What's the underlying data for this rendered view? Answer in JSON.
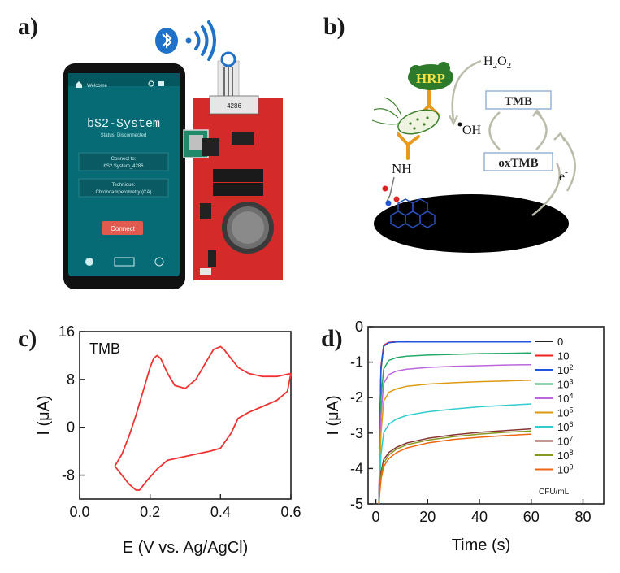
{
  "panels": {
    "a": {
      "letter": "a)",
      "phone": {
        "top_bar": "Welcome",
        "app_title": "bS2-System",
        "status": "Status: Disconnected",
        "connect_label": "Connect to:",
        "connect_value": "bS2 System_4286",
        "technique_label": "Technique:",
        "technique_value": "Chronoamperometry (CA)",
        "connect_button": "Connect"
      },
      "board": {
        "chip_label": "4286"
      }
    },
    "b": {
      "letter": "b)",
      "hrp": "HRP",
      "h2o2": "H",
      "h2o2_sub1": "2",
      "h2o2_mid": "O",
      "h2o2_sub2": "2",
      "oh": "OH",
      "tmb": "TMB",
      "oxtmb": "oxTMB",
      "nh": "NH",
      "electron": "e",
      "electron_sup": "-"
    },
    "c": {
      "letter": "c)",
      "annotation": "TMB",
      "ylabel": "I (μA)",
      "xlabel": "E (V vs. Ag/AgCl)"
    },
    "d": {
      "letter": "d)",
      "ylabel": "I (μA)",
      "xlabel": "Time (s)",
      "legend_unit": "CFU/mL"
    }
  },
  "chart_data": [
    {
      "type": "line",
      "panel": "c",
      "xlabel": "E (V vs. Ag/AgCl)",
      "ylabel": "I (μA)",
      "xlim": [
        0.0,
        0.6
      ],
      "ylim": [
        -12,
        16
      ],
      "xticks": [
        "0.0",
        "0.2",
        "0.4",
        "0.6"
      ],
      "yticks": [
        "16",
        "8",
        "0",
        "-8"
      ],
      "color": "#ee3333",
      "series": [
        {
          "x": [
            0.1,
            0.12,
            0.14,
            0.16,
            0.18,
            0.2,
            0.21,
            0.22,
            0.23,
            0.25,
            0.27,
            0.3,
            0.33,
            0.36,
            0.38,
            0.4,
            0.41,
            0.43,
            0.45,
            0.48,
            0.52,
            0.56,
            0.6,
            0.59,
            0.56,
            0.52,
            0.48,
            0.45,
            0.43,
            0.4,
            0.37,
            0.33,
            0.29,
            0.25,
            0.22,
            0.19,
            0.17,
            0.16,
            0.14,
            0.12,
            0.1
          ],
          "y": [
            -6.5,
            -4.5,
            -1.5,
            2.0,
            6.0,
            10.0,
            11.5,
            12.0,
            11.5,
            9.0,
            7.0,
            6.5,
            8.0,
            11.0,
            13.0,
            13.5,
            13.0,
            11.5,
            10.0,
            9.0,
            8.5,
            8.5,
            9.0,
            6.0,
            4.5,
            3.5,
            2.5,
            1.5,
            -1.0,
            -3.5,
            -4.0,
            -4.5,
            -5.0,
            -5.5,
            -7.0,
            -9.0,
            -10.5,
            -10.5,
            -9.5,
            -8.0,
            -6.5
          ]
        }
      ]
    },
    {
      "type": "line",
      "panel": "d",
      "xlabel": "Time (s)",
      "ylabel": "I (μA)",
      "xlim": [
        -3,
        88
      ],
      "ylim": [
        -5,
        0
      ],
      "xticks": [
        "0",
        "20",
        "40",
        "60",
        "80"
      ],
      "yticks": [
        "0",
        "-1",
        "-2",
        "-3",
        "-4",
        "-5"
      ],
      "legend_unit": "CFU/mL",
      "series": [
        {
          "name": "0",
          "base": "0",
          "exp": "",
          "color": "#222222",
          "x": [
            1.2,
            1.5,
            2,
            3,
            5,
            8,
            12,
            20,
            30,
            40,
            50,
            60
          ],
          "y": [
            -5.0,
            -3.2,
            -1.2,
            -0.55,
            -0.45,
            -0.43,
            -0.42,
            -0.42,
            -0.42,
            -0.42,
            -0.42,
            -0.42
          ]
        },
        {
          "name": "10",
          "base": "10",
          "exp": "",
          "color": "#ee2222",
          "x": [
            1.2,
            1.5,
            2,
            3,
            5,
            8,
            12,
            20,
            30,
            40,
            50,
            60
          ],
          "y": [
            -5.0,
            -3.0,
            -1.1,
            -0.52,
            -0.44,
            -0.42,
            -0.41,
            -0.41,
            -0.41,
            -0.41,
            -0.41,
            -0.41
          ]
        },
        {
          "name": "10^2",
          "base": "10",
          "exp": "2",
          "color": "#2255dd",
          "x": [
            1.2,
            1.5,
            2,
            3,
            5,
            8,
            12,
            20,
            30,
            40,
            50,
            60
          ],
          "y": [
            -5.0,
            -3.1,
            -1.15,
            -0.55,
            -0.45,
            -0.43,
            -0.43,
            -0.43,
            -0.43,
            -0.43,
            -0.43,
            -0.43
          ]
        },
        {
          "name": "10^3",
          "base": "10",
          "exp": "3",
          "color": "#22aa66",
          "x": [
            1.2,
            1.5,
            2,
            3,
            5,
            8,
            12,
            20,
            30,
            40,
            50,
            60
          ],
          "y": [
            -5.0,
            -3.6,
            -2.0,
            -1.2,
            -0.95,
            -0.87,
            -0.83,
            -0.8,
            -0.78,
            -0.76,
            -0.75,
            -0.74
          ]
        },
        {
          "name": "10^4",
          "base": "10",
          "exp": "4",
          "color": "#bb66dd",
          "x": [
            1.2,
            1.5,
            2,
            3,
            5,
            8,
            12,
            20,
            30,
            40,
            50,
            60
          ],
          "y": [
            -5.0,
            -3.9,
            -2.5,
            -1.6,
            -1.35,
            -1.25,
            -1.2,
            -1.15,
            -1.12,
            -1.1,
            -1.08,
            -1.07
          ]
        },
        {
          "name": "10^5",
          "base": "10",
          "exp": "5",
          "color": "#dd9911",
          "x": [
            1.2,
            1.5,
            2,
            3,
            5,
            8,
            12,
            20,
            30,
            40,
            50,
            60
          ],
          "y": [
            -5.0,
            -4.1,
            -3.0,
            -2.1,
            -1.85,
            -1.75,
            -1.68,
            -1.62,
            -1.58,
            -1.55,
            -1.53,
            -1.51
          ]
        },
        {
          "name": "10^6",
          "base": "10",
          "exp": "6",
          "color": "#33cccc",
          "x": [
            1.2,
            1.5,
            2,
            3,
            5,
            8,
            12,
            20,
            30,
            40,
            50,
            60
          ],
          "y": [
            -5.0,
            -4.4,
            -3.6,
            -3.0,
            -2.75,
            -2.6,
            -2.5,
            -2.4,
            -2.32,
            -2.26,
            -2.22,
            -2.18
          ]
        },
        {
          "name": "10^7",
          "base": "10",
          "exp": "7",
          "color": "#883333",
          "x": [
            1.2,
            1.5,
            2,
            3,
            5,
            8,
            12,
            20,
            30,
            40,
            50,
            60
          ],
          "y": [
            -5.0,
            -4.6,
            -4.1,
            -3.75,
            -3.55,
            -3.4,
            -3.28,
            -3.15,
            -3.05,
            -2.98,
            -2.93,
            -2.88
          ]
        },
        {
          "name": "10^8",
          "base": "10",
          "exp": "8",
          "color": "#889922",
          "x": [
            1.2,
            1.5,
            2,
            3,
            5,
            8,
            12,
            20,
            30,
            40,
            50,
            60
          ],
          "y": [
            -5.0,
            -4.65,
            -4.2,
            -3.85,
            -3.62,
            -3.45,
            -3.33,
            -3.2,
            -3.1,
            -3.03,
            -2.98,
            -2.94
          ]
        },
        {
          "name": "10^9",
          "base": "10",
          "exp": "9",
          "color": "#ee6611",
          "x": [
            1.2,
            1.5,
            2,
            3,
            5,
            8,
            12,
            20,
            30,
            40,
            50,
            60
          ],
          "y": [
            -5.0,
            -4.7,
            -4.3,
            -3.95,
            -3.72,
            -3.55,
            -3.42,
            -3.28,
            -3.18,
            -3.12,
            -3.07,
            -3.03
          ]
        }
      ]
    }
  ]
}
